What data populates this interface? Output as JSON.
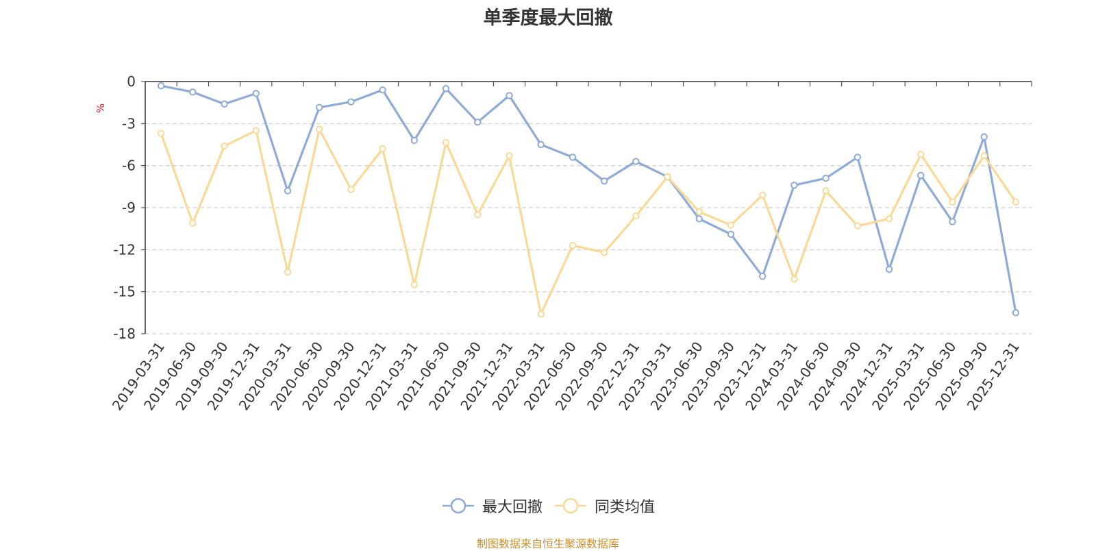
{
  "chart_data": {
    "type": "line",
    "title": "单季度最大回撤",
    "ylabel": "%",
    "ylim": [
      -18,
      0
    ],
    "yticks": [
      0,
      -3,
      -6,
      -9,
      -12,
      -15,
      -18
    ],
    "grid": true,
    "legend_placement": "bottom-center",
    "categories": [
      "2019-03-31",
      "2019-06-30",
      "2019-09-30",
      "2019-12-31",
      "2020-03-31",
      "2020-06-30",
      "2020-09-30",
      "2020-12-31",
      "2021-03-31",
      "2021-06-30",
      "2021-09-30",
      "2021-12-31",
      "2022-03-31",
      "2022-06-30",
      "2022-09-30",
      "2022-12-31",
      "2023-03-31",
      "2023-06-30",
      "2023-09-30",
      "2023-12-31",
      "2024-03-31",
      "2024-06-30",
      "2024-09-30",
      "2024-12-31",
      "2025-03-31",
      "2025-06-30",
      "2025-09-30",
      "2025-12-31"
    ],
    "series": [
      {
        "name": "最大回撤",
        "color": "#8eaad7",
        "values": [
          -0.3,
          -0.75,
          -1.6,
          -0.85,
          -7.8,
          -1.85,
          -1.45,
          -0.6,
          -4.2,
          -0.5,
          -2.9,
          -1.0,
          -4.5,
          -5.4,
          -7.1,
          -5.7,
          -6.8,
          -9.8,
          -10.9,
          -13.9,
          -7.4,
          -6.9,
          -5.4,
          -13.4,
          -6.7,
          -10.0,
          -3.95,
          -16.5
        ]
      },
      {
        "name": "同类均值",
        "color": "#fad997",
        "values": [
          -3.7,
          -10.1,
          -4.6,
          -3.5,
          -13.6,
          -3.4,
          -7.7,
          -4.8,
          -14.5,
          -4.35,
          -9.5,
          -5.3,
          -16.6,
          -11.7,
          -12.2,
          -9.6,
          -6.8,
          -9.3,
          -10.25,
          -8.1,
          -14.1,
          -7.8,
          -10.3,
          -9.8,
          -5.2,
          -8.6,
          -5.3,
          -8.6
        ]
      }
    ]
  },
  "footer": "制图数据来自恒生聚源数据库"
}
